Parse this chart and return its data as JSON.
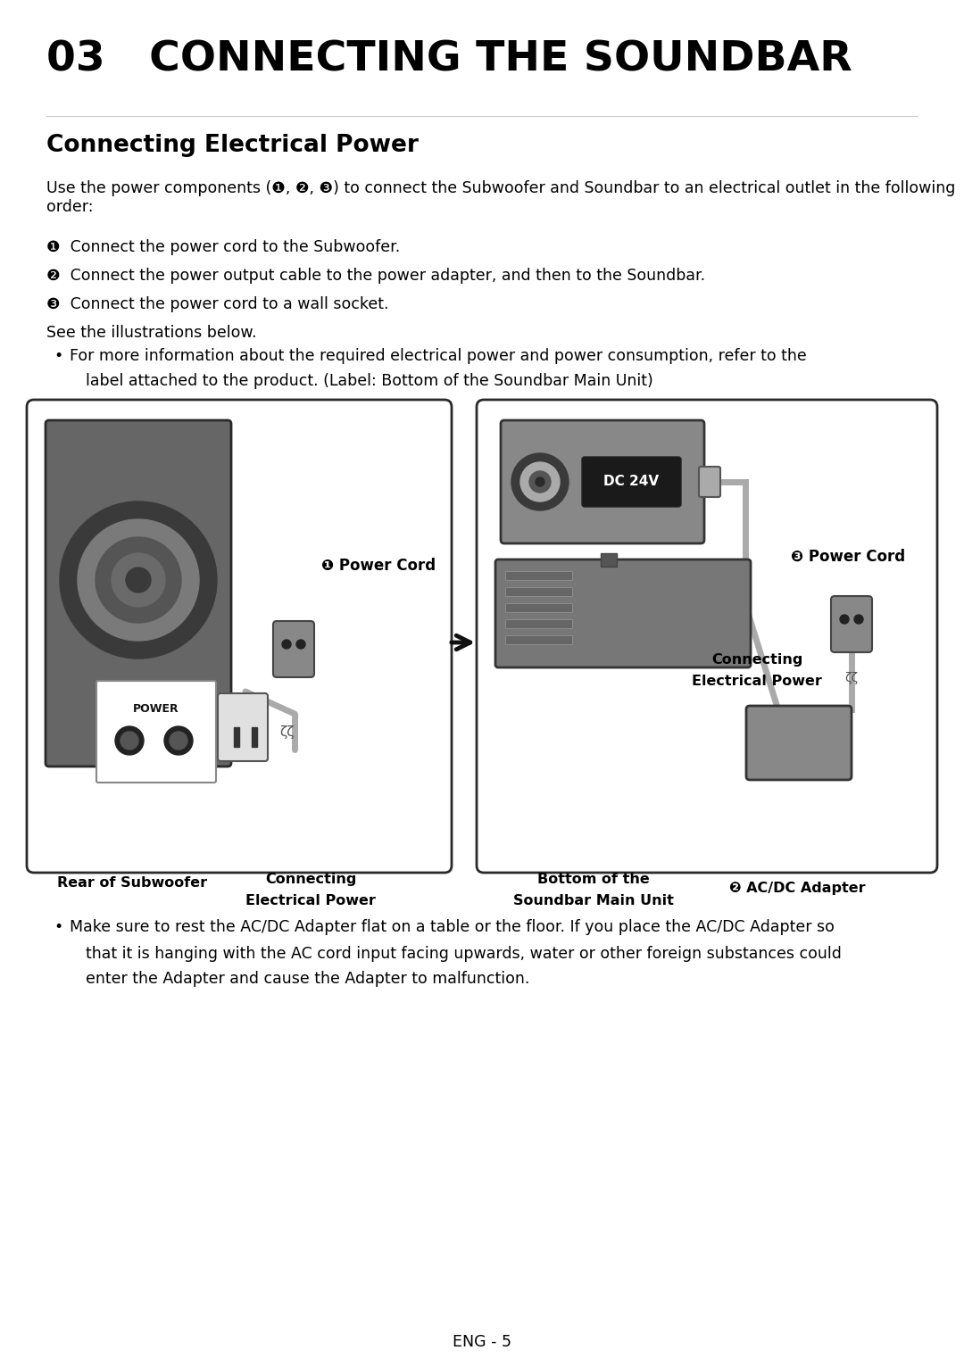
{
  "title": "03   CONNECTING THE SOUNDBAR",
  "section_title": "Connecting Electrical Power",
  "body_text1": "Use the power components (❶, ❷, ❸) to connect the Subwoofer and Soundbar to an electrical outlet in the following order:",
  "step1": "❶  Connect the power cord to the Subwoofer.",
  "step2": "❷  Connect the power output cable to the power adapter, and then to the Soundbar.",
  "step3": "❸  Connect the power cord to a wall socket.",
  "see_text": "See the illustrations below.",
  "bullet1_line1": "For more information about the required electrical power and power consumption, refer to the",
  "bullet1_line2": "label attached to the product. (Label: Bottom of the Soundbar Main Unit)",
  "bullet2_line1": "Make sure to rest the AC/DC Adapter flat on a table or the floor. If you place the AC/DC Adapter so",
  "bullet2_line2": "that it is hanging with the AC cord input facing upwards, water or other foreign substances could",
  "bullet2_line3": "enter the Adapter and cause the Adapter to malfunction.",
  "footer": "ENG - 5",
  "bg_color": "#ffffff",
  "text_color": "#000000",
  "label1_left": "Rear of Subwoofer",
  "label1_right_line1": "Connecting",
  "label1_right_line2": "Electrical Power",
  "label2_left_line1": "Bottom of the",
  "label2_left_line2": "Soundbar Main Unit",
  "label2_right": "❷ AC/DC Adapter",
  "power_cord_label1": "❶ Power Cord",
  "power_cord_label2": "❸ Power Cord",
  "connecting_line1": "Connecting",
  "connecting_line2": "Electrical Power",
  "dc24v_label": "DC 24V",
  "power_label": "POWER"
}
